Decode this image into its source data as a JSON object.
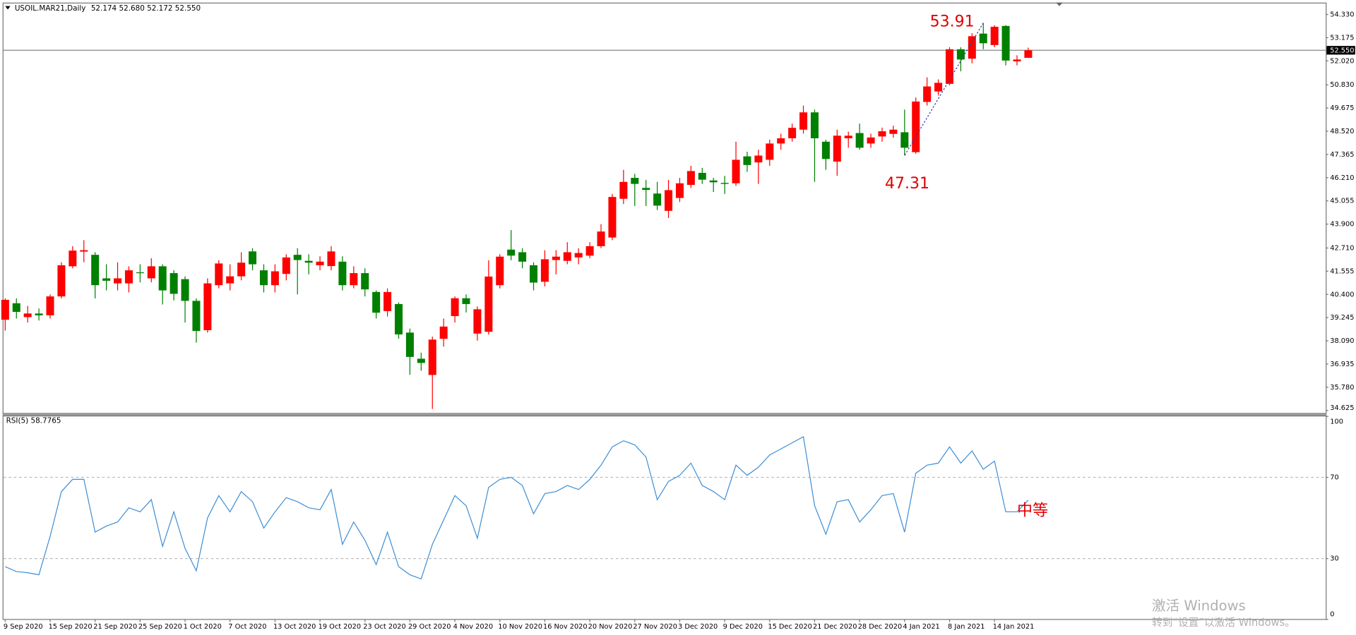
{
  "header": {
    "symbol": "USOIL.MAR21,Daily",
    "ohlc": "52.174 52.680 52.172 52.550"
  },
  "chart_data": [
    {
      "type": "candlestick",
      "categories": [
        "9 Sep 2020",
        null,
        null,
        null,
        "15 Sep 2020",
        null,
        null,
        null,
        "21 Sep 2020",
        null,
        null,
        null,
        "25 Sep 2020",
        null,
        null,
        null,
        "1 Oct 2020",
        null,
        null,
        null,
        "7 Oct 2020",
        null,
        null,
        null,
        "13 Oct 2020",
        null,
        null,
        null,
        "19 Oct 2020",
        null,
        null,
        null,
        "23 Oct 2020",
        null,
        null,
        null,
        "29 Oct 2020",
        null,
        null,
        null,
        "4 Nov 2020",
        null,
        null,
        null,
        "10 Nov 2020",
        null,
        null,
        null,
        "16 Nov 2020",
        null,
        null,
        null,
        "20 Nov 2020",
        null,
        null,
        null,
        "27 Nov 2020",
        null,
        null,
        null,
        "3 Dec 2020",
        null,
        null,
        null,
        "9 Dec 2020",
        null,
        null,
        null,
        "15 Dec 2020",
        null,
        null,
        null,
        "21 Dec 2020",
        null,
        null,
        null,
        "28 Dec 2020",
        null,
        null,
        null,
        "4 Jan 2021",
        null,
        null,
        null,
        "8 Jan 2021",
        null,
        null,
        null,
        "14 Jan 2021",
        null,
        null,
        null
      ],
      "open": [
        39.14,
        39.96,
        39.27,
        39.45,
        39.36,
        40.3,
        41.8,
        42.53,
        42.37,
        41.2,
        40.95,
        40.95,
        41.5,
        41.2,
        41.8,
        41.46,
        41.16,
        40.08,
        38.62,
        40.86,
        40.95,
        41.3,
        42.54,
        41.6,
        40.86,
        41.42,
        42.37,
        42.07,
        41.85,
        41.81,
        42.03,
        40.86,
        41.46,
        40.52,
        39.57,
        39.92,
        38.5,
        37.2,
        36.39,
        38.19,
        39.32,
        40.21,
        38.45,
        38.54,
        40.86,
        42.63,
        42.5,
        41.85,
        41.03,
        42.11,
        42.07,
        42.24,
        42.33,
        42.8,
        43.23,
        45.16,
        46.2,
        45.7,
        45.42,
        44.56,
        45.2,
        45.85,
        46.45,
        46.07,
        45.95,
        45.93,
        47.27,
        46.97,
        47.1,
        47.91,
        48.17,
        48.6,
        49.46,
        48.0,
        47.01,
        48.17,
        48.43,
        47.91,
        48.26,
        48.39,
        48.47,
        47.48,
        49.98,
        50.5,
        50.88,
        52.6,
        52.13,
        53.38,
        52.81,
        53.76,
        52.0,
        52.174
      ],
      "high": [
        40.2,
        40.2,
        39.83,
        39.7,
        40.4,
        42.0,
        42.8,
        43.1,
        42.5,
        41.9,
        42.0,
        41.8,
        41.9,
        42.2,
        41.9,
        41.6,
        41.3,
        40.2,
        41.2,
        42.1,
        41.9,
        42.5,
        42.7,
        41.9,
        41.9,
        42.4,
        42.7,
        42.4,
        42.3,
        42.8,
        42.3,
        41.8,
        41.7,
        40.6,
        40.7,
        40.0,
        38.7,
        37.5,
        38.3,
        39.2,
        40.3,
        40.4,
        39.8,
        42.1,
        42.4,
        43.6,
        42.7,
        42.0,
        42.6,
        42.6,
        43.0,
        42.7,
        43.0,
        43.9,
        45.4,
        46.6,
        46.4,
        46.1,
        46.0,
        46.1,
        46.2,
        46.8,
        46.7,
        46.2,
        46.3,
        48.0,
        47.5,
        47.6,
        48.1,
        48.4,
        48.9,
        49.8,
        49.6,
        48.1,
        48.6,
        48.5,
        48.9,
        48.4,
        48.7,
        48.8,
        49.6,
        50.2,
        51.2,
        51.1,
        52.7,
        52.7,
        53.4,
        53.91,
        53.8,
        53.8,
        52.3,
        52.68
      ],
      "low": [
        38.6,
        39.2,
        39.0,
        39.1,
        39.2,
        40.2,
        41.7,
        42.0,
        40.2,
        40.6,
        40.6,
        40.5,
        41.0,
        41.0,
        39.9,
        40.1,
        39.0,
        38.0,
        38.5,
        40.7,
        40.6,
        41.1,
        41.6,
        40.5,
        40.5,
        41.1,
        40.4,
        41.4,
        41.6,
        41.6,
        40.6,
        40.7,
        40.3,
        39.2,
        39.3,
        38.2,
        36.4,
        36.6,
        34.7,
        37.8,
        39.0,
        39.5,
        38.1,
        38.4,
        40.7,
        42.1,
        41.7,
        40.6,
        40.8,
        41.4,
        41.9,
        41.9,
        42.2,
        42.7,
        43.1,
        44.9,
        44.8,
        44.8,
        44.6,
        44.2,
        45.0,
        45.7,
        45.9,
        45.5,
        45.4,
        45.8,
        46.5,
        45.9,
        46.8,
        47.6,
        48.0,
        48.4,
        46.0,
        46.6,
        46.3,
        47.7,
        47.6,
        47.7,
        48.0,
        48.2,
        47.31,
        47.4,
        49.8,
        50.3,
        50.8,
        51.5,
        51.9,
        52.6,
        52.7,
        51.8,
        51.8,
        52.172
      ],
      "close": [
        40.13,
        39.53,
        39.45,
        39.36,
        40.3,
        41.85,
        42.58,
        42.6,
        40.86,
        41.08,
        41.2,
        41.6,
        41.46,
        41.8,
        40.6,
        40.43,
        40.08,
        38.58,
        40.95,
        41.94,
        41.3,
        41.98,
        41.9,
        40.86,
        41.55,
        42.24,
        42.11,
        41.98,
        42.03,
        42.54,
        40.86,
        41.46,
        40.65,
        39.49,
        40.52,
        38.41,
        37.29,
        36.99,
        38.15,
        38.8,
        40.21,
        39.92,
        39.66,
        41.29,
        42.28,
        42.33,
        42.03,
        40.99,
        42.15,
        42.28,
        42.5,
        42.46,
        42.8,
        43.53,
        45.25,
        46.0,
        45.9,
        45.6,
        44.82,
        45.59,
        45.93,
        46.54,
        46.11,
        45.98,
        45.9,
        47.1,
        46.84,
        47.31,
        47.91,
        48.17,
        48.69,
        49.46,
        48.17,
        47.14,
        48.3,
        48.3,
        47.7,
        48.21,
        48.52,
        48.6,
        47.7,
        50.0,
        50.75,
        50.93,
        52.6,
        52.09,
        53.25,
        52.9,
        53.72,
        52.04,
        52.09,
        52.55
      ],
      "up_color": "#ff0000",
      "down_color": "#008000",
      "ylim": [
        34.5,
        54.88
      ],
      "yticks": [
        {
          "value": 54.33,
          "label": "54.330"
        },
        53.175,
        {
          "value": 52.02,
          "label": "52.020"
        },
        {
          "value": 50.83,
          "label": "50.830"
        },
        49.675,
        {
          "value": 48.52,
          "label": "48.520"
        },
        47.365,
        {
          "value": 46.21,
          "label": "46.210"
        },
        45.055,
        {
          "value": 43.9,
          "label": "43.900"
        },
        {
          "value": 42.71,
          "label": "42.710"
        },
        41.555,
        {
          "value": 40.4,
          "label": "40.400"
        },
        39.245,
        {
          "value": 38.09,
          "label": "38.090"
        },
        36.935,
        {
          "value": 35.78,
          "label": "35.780"
        },
        34.625
      ],
      "current_price": {
        "value": 52.55,
        "label": "52.550"
      },
      "annotations": [
        53.91,
        47.31
      ],
      "annotation_color": "#e00000"
    },
    {
      "type": "line",
      "title": "RSI(5) 58.7765",
      "color": "#3f8fd6",
      "values": [
        26,
        23.6,
        23,
        22,
        41,
        63,
        69,
        69,
        43,
        46,
        48,
        55,
        53,
        59,
        36,
        53,
        35,
        24,
        50,
        61,
        53,
        63,
        58,
        45,
        53,
        60,
        58,
        55,
        54,
        64,
        37,
        48,
        39,
        27,
        43,
        26,
        22,
        20,
        37,
        49,
        61,
        56,
        40,
        65,
        69,
        70,
        66,
        52,
        62,
        63,
        66,
        64,
        69,
        76,
        85,
        88,
        86,
        80,
        59,
        68,
        71,
        77,
        66,
        63,
        59,
        76,
        71,
        75,
        81,
        84,
        87,
        90,
        56,
        42,
        58,
        59,
        48,
        54,
        61,
        62,
        43,
        72,
        76,
        77,
        85,
        77,
        83,
        74,
        78,
        53,
        53,
        58.7765
      ],
      "ylim": [
        0,
        100
      ],
      "yticks": [
        100,
        70,
        30,
        0
      ],
      "grid": true,
      "annotation": "中等"
    }
  ],
  "watermark": {
    "title": "激活 Windows",
    "text": "转到“设置”以激活 Windows。"
  }
}
